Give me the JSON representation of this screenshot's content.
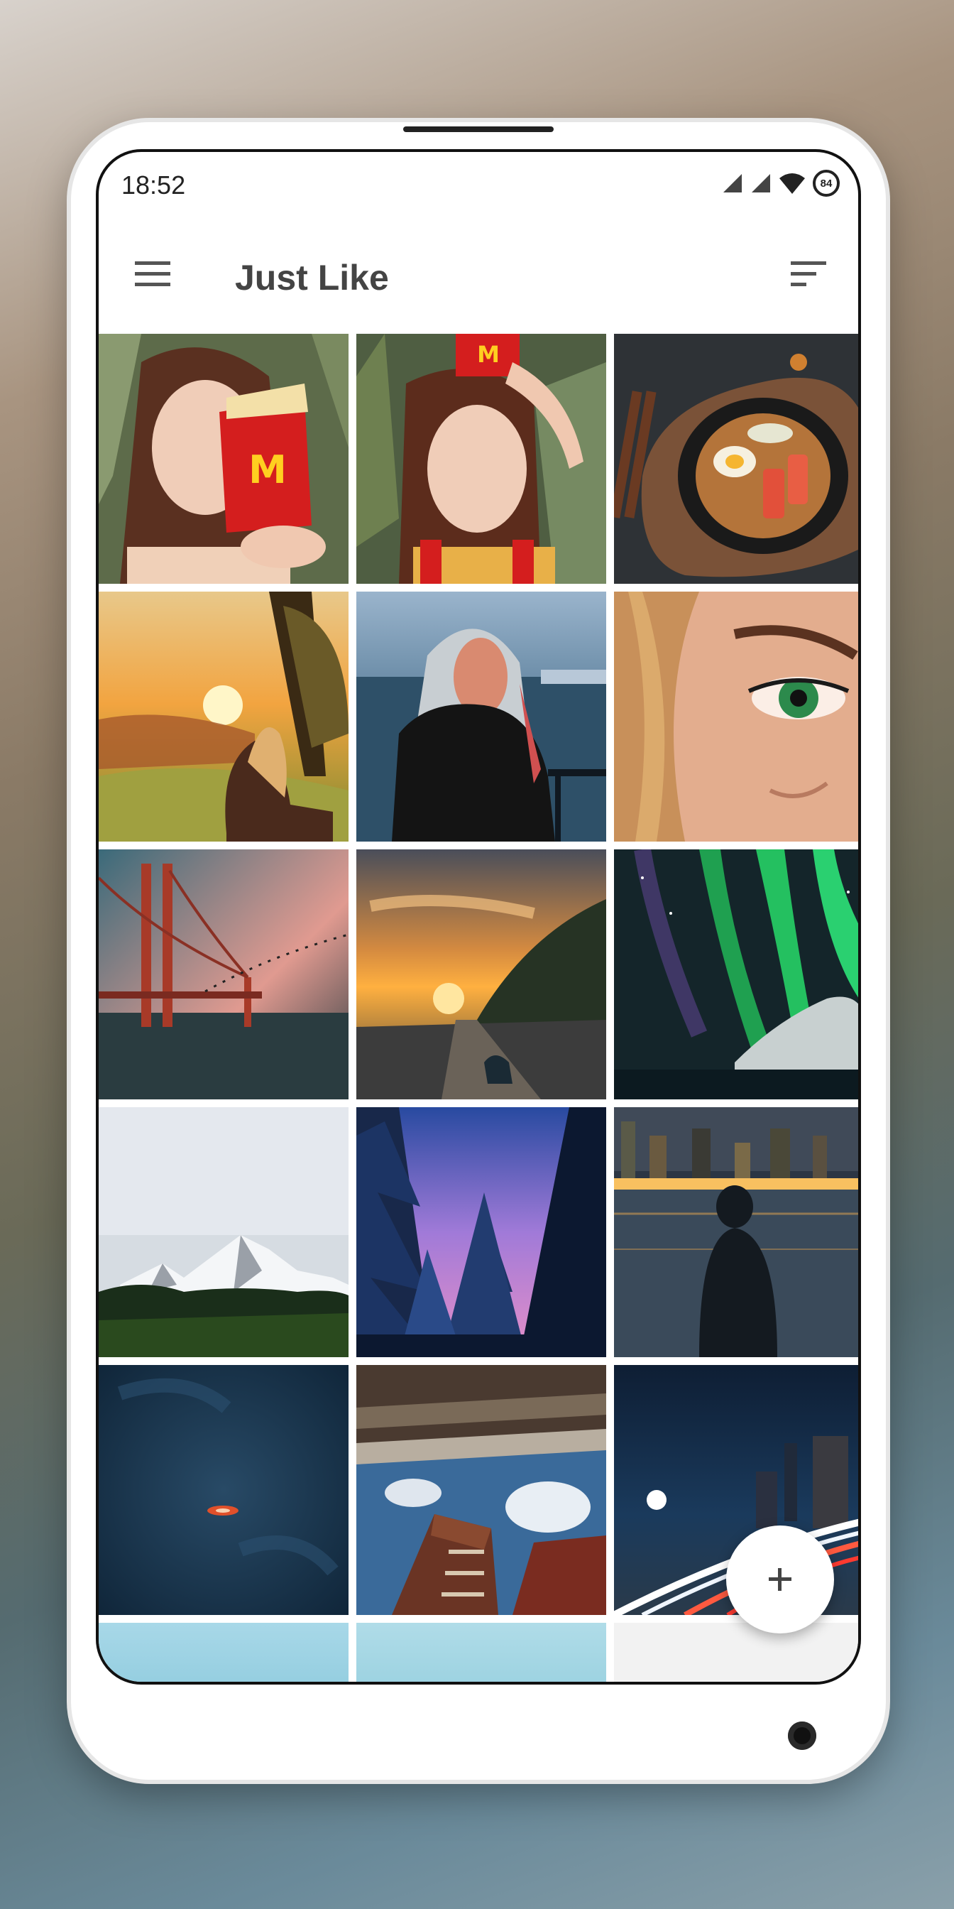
{
  "status_bar": {
    "time": "18:52",
    "battery": "84"
  },
  "app_bar": {
    "title": "Just Like"
  },
  "colors": {
    "accent": "#444444",
    "background": "#ffffff"
  },
  "icons": {
    "menu": "menu-icon",
    "sort": "sort-icon",
    "add": "add-icon"
  },
  "photos": [
    "woman-with-fries-covering-eye",
    "woman-with-fries-box-on-head",
    "ramen-bowl-on-dark-table",
    "woman-at-sunset-meadow",
    "woman-by-lake-twilight",
    "close-up-green-eye",
    "golden-gate-bridge-birds",
    "sunset-road-with-dog",
    "green-aurora-over-mountains",
    "snowy-mountain-peak-forest",
    "snowy-pines-purple-sky",
    "man-watching-city-lights",
    "boat-in-dark-sea",
    "buildings-from-below",
    "city-light-trails-night",
    "sky-partial-1",
    "sky-partial-2",
    "empty"
  ]
}
